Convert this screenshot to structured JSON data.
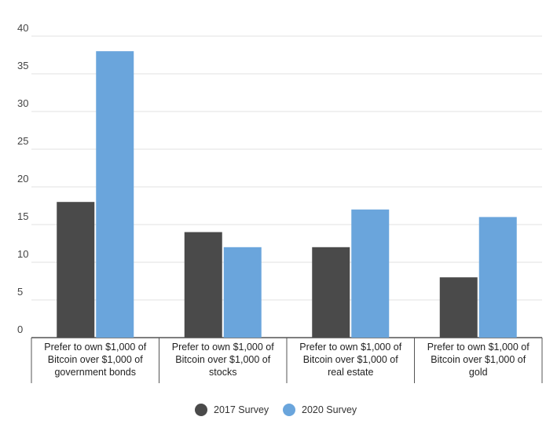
{
  "chart_data": {
    "type": "bar",
    "categories": [
      [
        "Prefer to own $1,000 of",
        "Bitcoin over $1,000 of",
        "government bonds"
      ],
      [
        "Prefer to own $1,000 of",
        "Bitcoin over $1,000 of",
        "stocks"
      ],
      [
        "Prefer to own $1,000 of",
        "Bitcoin over $1,000 of",
        "real estate"
      ],
      [
        "Prefer to own $1,000 of",
        "Bitcoin over $1,000 of",
        "gold"
      ]
    ],
    "series": [
      {
        "name": "2017 Survey",
        "values": [
          18,
          14,
          12,
          8
        ],
        "color": "#4a4a4a"
      },
      {
        "name": "2020 Survey",
        "values": [
          38,
          12,
          17,
          16
        ],
        "color": "#6aa5dc"
      }
    ],
    "ylim": [
      0,
      40
    ],
    "yticks": [
      0,
      5,
      10,
      15,
      20,
      25,
      30,
      35,
      40
    ],
    "grid": true,
    "legend": "bottom-center"
  }
}
